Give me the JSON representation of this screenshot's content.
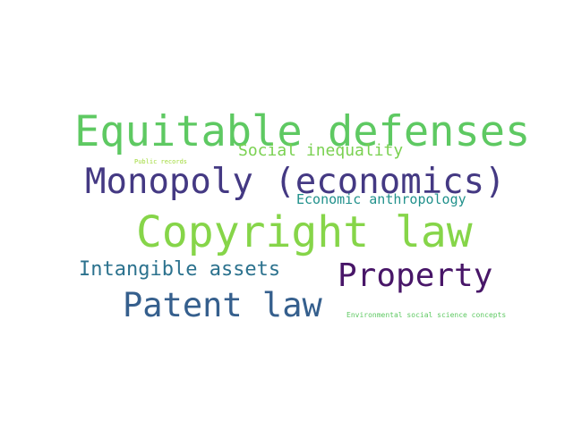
{
  "words": [
    {
      "text": "Equitable defenses",
      "color": "#5ec962"
    },
    {
      "text": "Social inequality",
      "color": "#7ad151"
    },
    {
      "text": "Public records",
      "color": "#a0da39"
    },
    {
      "text": "Monopoly (economics)",
      "color": "#443983"
    },
    {
      "text": "Economic anthropology",
      "color": "#21918c"
    },
    {
      "text": "Copyright law",
      "color": "#86d549"
    },
    {
      "text": "Intangible assets",
      "color": "#2c728e"
    },
    {
      "text": "Property",
      "color": "#481668"
    },
    {
      "text": "Patent law",
      "color": "#355f8d"
    },
    {
      "text": "Environmental social science concepts",
      "color": "#5ec962"
    }
  ]
}
